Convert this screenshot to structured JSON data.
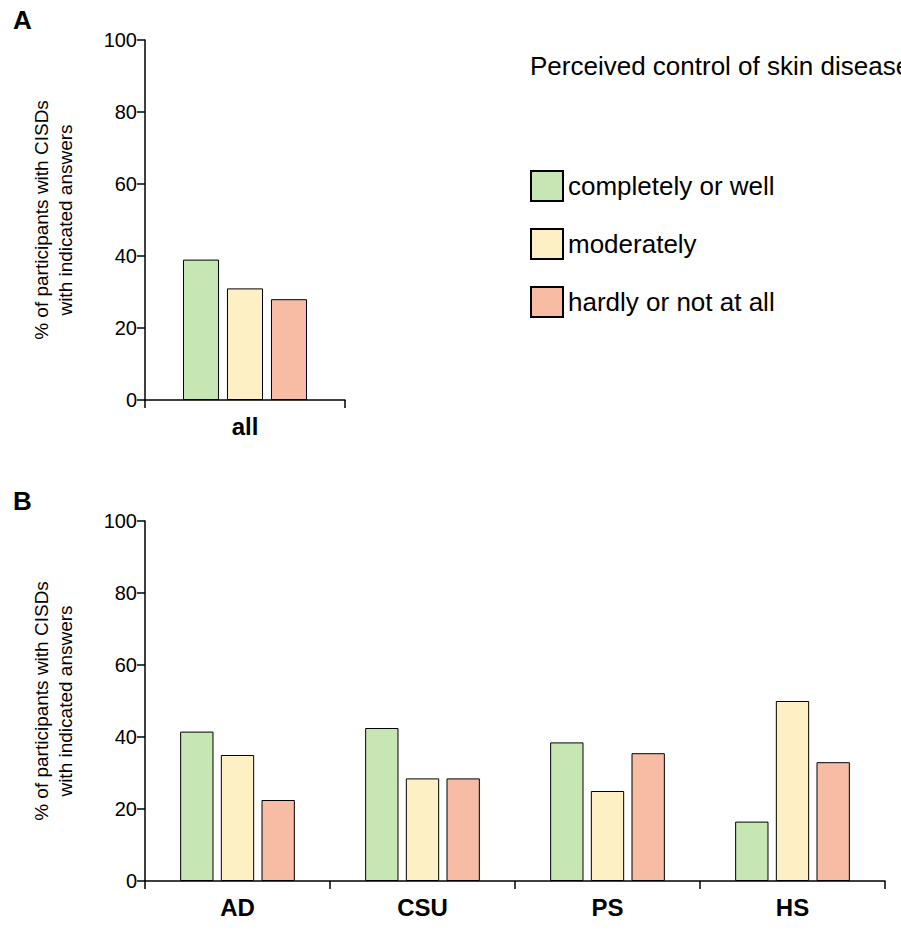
{
  "chart_data": [
    {
      "type": "bar",
      "title": "A",
      "legend_title": "Perceived control of skin disease:",
      "y_label": "% of participants with CISDs\nwith indicated answers",
      "categories": [
        "all"
      ],
      "series": [
        {
          "name": "completely or well",
          "color": "#c6e6b3",
          "values": [
            39
          ]
        },
        {
          "name": "moderately",
          "color": "#fdf0c4",
          "values": [
            31
          ]
        },
        {
          "name": "hardly or not at all",
          "color": "#f6bca4",
          "values": [
            28
          ]
        }
      ],
      "ylim": [
        0,
        100
      ],
      "yticks": [
        0,
        20,
        40,
        60,
        80,
        100
      ],
      "grid": false,
      "legend": "upper right"
    },
    {
      "type": "bar",
      "title": "B",
      "y_label": "% of participants with CISDs\nwith indicated answers",
      "categories": [
        "AD",
        "CSU",
        "PS",
        "HS"
      ],
      "series": [
        {
          "name": "completely or well",
          "color": "#c6e6b3",
          "values": [
            41.5,
            42.5,
            38.5,
            16.5
          ]
        },
        {
          "name": "moderately",
          "color": "#fdf0c4",
          "values": [
            35,
            28.5,
            25,
            50
          ]
        },
        {
          "name": "hardly or not at all",
          "color": "#f6bca4",
          "values": [
            22.5,
            28.5,
            35.5,
            33
          ]
        }
      ],
      "ylim": [
        0,
        100
      ],
      "yticks": [
        0,
        20,
        40,
        60,
        80,
        100
      ],
      "grid": false
    }
  ]
}
